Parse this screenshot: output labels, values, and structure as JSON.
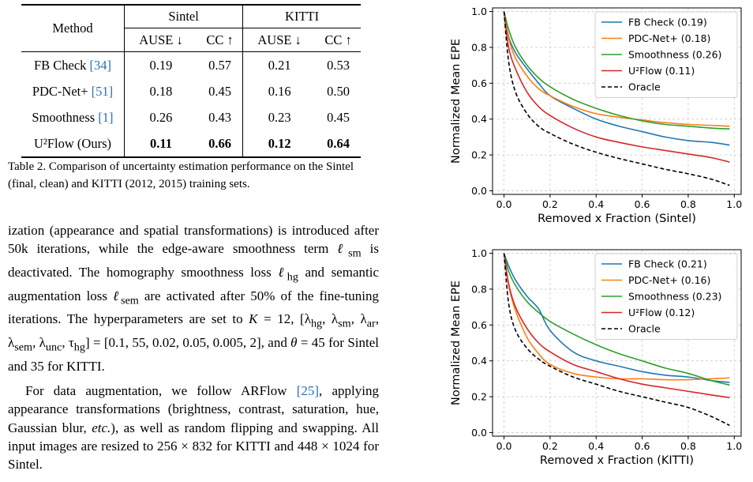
{
  "table": {
    "method_header": "Method",
    "groups": [
      "Sintel",
      "KITTI"
    ],
    "subheaders": [
      "AUSE ↓",
      "CC ↑",
      "AUSE ↓",
      "CC ↑"
    ],
    "rows": [
      {
        "method": "FB Check ",
        "cite": "[34]",
        "values": [
          "0.19",
          "0.57",
          "0.21",
          "0.53"
        ],
        "bold": false
      },
      {
        "method": "PDC-Net+ ",
        "cite": "[51]",
        "values": [
          "0.18",
          "0.45",
          "0.16",
          "0.50"
        ],
        "bold": false
      },
      {
        "method": "Smoothness ",
        "cite": "[1]",
        "values": [
          "0.26",
          "0.43",
          "0.23",
          "0.45"
        ],
        "bold": false
      },
      {
        "method": "U²Flow (Ours)",
        "cite": "",
        "values": [
          "0.11",
          "0.66",
          "0.12",
          "0.64"
        ],
        "bold": true
      }
    ]
  },
  "caption": "Table 2. Comparison of uncertainty estimation performance on the Sintel (final, clean) and KITTI (2012, 2015) training sets.",
  "body": {
    "p1_a": "ization (appearance and spatial transformations) is introduced after 50k iterations, while the edge-aware smoothness term ",
    "p1_b": "ℓ",
    "p1_b_sub": "sm",
    "p1_c": " is deactivated. The homography smoothness loss ",
    "p1_d": "ℓ",
    "p1_d_sub": "hg",
    "p1_e": " and semantic augmentation loss ",
    "p1_f": "ℓ",
    "p1_f_sub": "sem",
    "p1_g": " are activated after 50% of the fine-tuning iterations. The hyperparameters are set to ",
    "p1_h": "K",
    "p1_i": " = 12, [λ",
    "p1_i_sub1": "hg",
    "p1_j": ", λ",
    "p1_j_sub": "sm",
    "p1_k": ", λ",
    "p1_k_sub": "ar",
    "p1_l": ", λ",
    "p1_l_sub": "sem",
    "p1_m": ", λ",
    "p1_m_sub": "unc",
    "p1_n": ", τ",
    "p1_n_sub": "hg",
    "p1_o": "] = [0.1, 55, 0.02, 0.05, 0.005, 2], and ",
    "p1_p": "θ",
    "p1_q": " = 45 for Sintel and 35 for KITTI.",
    "p2_a": "For data augmentation, we follow ARFlow ",
    "p2_cite": "[25]",
    "p2_b": ", applying appearance transformations (brightness, contrast, saturation, hue, Gaussian blur, ",
    "p2_c": "etc.",
    "p2_d": "), as well as random flipping and swapping. All input images are resized to 256 × 832 for KITTI and 448 × 1024 for Sintel."
  },
  "chart_data": [
    {
      "type": "line",
      "xlabel": "Removed x Fraction (Sintel)",
      "ylabel": "Normalized Mean EPE",
      "xlim": [
        0,
        1
      ],
      "ylim": [
        0,
        1
      ],
      "xticks": [
        "0.0",
        "0.2",
        "0.4",
        "0.6",
        "0.8",
        "1.0"
      ],
      "yticks": [
        "0.0",
        "0.2",
        "0.4",
        "0.6",
        "0.8",
        "1.0"
      ],
      "grid": true,
      "legend_position": "top-right",
      "x": [
        0,
        0.02,
        0.05,
        0.1,
        0.15,
        0.2,
        0.3,
        0.4,
        0.5,
        0.6,
        0.7,
        0.8,
        0.9,
        0.98
      ],
      "series": [
        {
          "name": "FB Check (0.19)",
          "color": "#1f77b4",
          "dash": "solid",
          "values": [
            1.0,
            0.86,
            0.77,
            0.68,
            0.6,
            0.53,
            0.46,
            0.4,
            0.36,
            0.33,
            0.3,
            0.28,
            0.27,
            0.255
          ]
        },
        {
          "name": "PDC-Net+ (0.18)",
          "color": "#ff7f0e",
          "dash": "solid",
          "values": [
            1.0,
            0.85,
            0.74,
            0.64,
            0.57,
            0.53,
            0.47,
            0.43,
            0.41,
            0.395,
            0.38,
            0.37,
            0.365,
            0.36
          ]
        },
        {
          "name": "Smoothness (0.26)",
          "color": "#2ca02c",
          "dash": "solid",
          "values": [
            1.0,
            0.9,
            0.8,
            0.7,
            0.63,
            0.58,
            0.51,
            0.46,
            0.42,
            0.39,
            0.37,
            0.36,
            0.35,
            0.345
          ]
        },
        {
          "name": "U²Flow (0.11)",
          "color": "#d62728",
          "dash": "solid",
          "values": [
            1.0,
            0.8,
            0.68,
            0.55,
            0.47,
            0.42,
            0.35,
            0.3,
            0.27,
            0.245,
            0.225,
            0.205,
            0.185,
            0.16
          ]
        },
        {
          "name": "Oracle",
          "color": "#000000",
          "dash": "dashed",
          "values": [
            1.0,
            0.72,
            0.55,
            0.43,
            0.36,
            0.32,
            0.26,
            0.215,
            0.18,
            0.15,
            0.12,
            0.095,
            0.065,
            0.03
          ]
        }
      ]
    },
    {
      "type": "line",
      "xlabel": "Removed x Fraction (KITTI)",
      "ylabel": "Normalized Mean EPE",
      "xlim": [
        0,
        1
      ],
      "ylim": [
        0,
        1
      ],
      "xticks": [
        "0.0",
        "0.2",
        "0.4",
        "0.6",
        "0.8",
        "1.0"
      ],
      "yticks": [
        "0.0",
        "0.2",
        "0.4",
        "0.6",
        "0.8",
        "1.0"
      ],
      "grid": true,
      "legend_position": "top-right",
      "x": [
        0,
        0.02,
        0.05,
        0.1,
        0.15,
        0.2,
        0.3,
        0.4,
        0.5,
        0.6,
        0.7,
        0.8,
        0.9,
        0.98
      ],
      "series": [
        {
          "name": "FB Check (0.21)",
          "color": "#1f77b4",
          "dash": "solid",
          "values": [
            1.0,
            0.93,
            0.85,
            0.76,
            0.69,
            0.57,
            0.45,
            0.4,
            0.37,
            0.34,
            0.32,
            0.31,
            0.29,
            0.28
          ]
        },
        {
          "name": "PDC-Net+ (0.16)",
          "color": "#ff7f0e",
          "dash": "solid",
          "values": [
            1.0,
            0.82,
            0.68,
            0.53,
            0.44,
            0.38,
            0.33,
            0.31,
            0.3,
            0.3,
            0.295,
            0.295,
            0.3,
            0.305
          ]
        },
        {
          "name": "Smoothness (0.23)",
          "color": "#2ca02c",
          "dash": "solid",
          "values": [
            1.0,
            0.9,
            0.82,
            0.73,
            0.67,
            0.62,
            0.55,
            0.49,
            0.44,
            0.4,
            0.36,
            0.33,
            0.29,
            0.265
          ]
        },
        {
          "name": "U²Flow (0.12)",
          "color": "#d62728",
          "dash": "solid",
          "values": [
            1.0,
            0.83,
            0.7,
            0.58,
            0.5,
            0.45,
            0.38,
            0.34,
            0.3,
            0.27,
            0.25,
            0.23,
            0.21,
            0.195
          ]
        },
        {
          "name": "Oracle",
          "color": "#000000",
          "dash": "dashed",
          "values": [
            1.0,
            0.72,
            0.57,
            0.47,
            0.41,
            0.37,
            0.31,
            0.27,
            0.23,
            0.2,
            0.17,
            0.14,
            0.09,
            0.04
          ]
        }
      ]
    }
  ]
}
